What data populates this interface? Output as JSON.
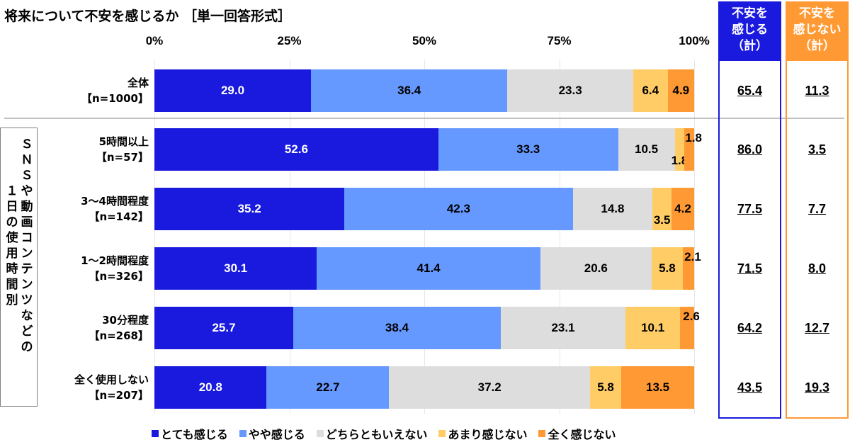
{
  "title": "将来について不安を感じるか ［単一回答形式］",
  "chart_data": {
    "type": "bar",
    "orientation": "horizontal-stacked-100",
    "title": "将来について不安を感じるか ［単一回答形式］",
    "x_ticks": [
      "0%",
      "25%",
      "50%",
      "75%",
      "100%"
    ],
    "xlim": [
      0,
      100
    ],
    "grid": true,
    "legend_position": "bottom",
    "series": [
      {
        "name": "とても感じる",
        "color": "#1a1adf",
        "label_color": "#ffffff"
      },
      {
        "name": "やや感じる",
        "color": "#6699ff",
        "label_color": "#000000"
      },
      {
        "name": "どちらともいえない",
        "color": "#dddddd",
        "label_color": "#000000"
      },
      {
        "name": "あまり感じない",
        "color": "#ffcc66",
        "label_color": "#000000"
      },
      {
        "name": "全く感じない",
        "color": "#ff9933",
        "label_color": "#000000"
      }
    ],
    "rows": [
      {
        "label": "全体",
        "n": "【n=1000】",
        "values": [
          29.0,
          36.4,
          23.3,
          6.4,
          4.9
        ],
        "labels": [
          "29.0",
          "36.4",
          "23.3",
          "6.4",
          "4.9"
        ],
        "anxious_total": "65.4",
        "not_anxious_total": "11.3"
      },
      {
        "label": "5時間以上",
        "n": "【n=57】",
        "values": [
          52.6,
          33.3,
          10.5,
          1.8,
          1.8
        ],
        "labels": [
          "52.6",
          "33.3",
          "10.5",
          "1.8",
          "1.8"
        ],
        "anxious_total": "86.0",
        "not_anxious_total": "3.5"
      },
      {
        "label": "3～4時間程度",
        "n": "【n=142】",
        "values": [
          35.2,
          42.3,
          14.8,
          3.5,
          4.2
        ],
        "labels": [
          "35.2",
          "42.3",
          "14.8",
          "3.5",
          "4.2"
        ],
        "anxious_total": "77.5",
        "not_anxious_total": "7.7"
      },
      {
        "label": "1～2時間程度",
        "n": "【n=326】",
        "values": [
          30.1,
          41.4,
          20.6,
          5.8,
          2.1
        ],
        "labels": [
          "30.1",
          "41.4",
          "20.6",
          "5.8",
          "2.1"
        ],
        "anxious_total": "71.5",
        "not_anxious_total": "8.0"
      },
      {
        "label": "30分程度",
        "n": "【n=268】",
        "values": [
          25.7,
          38.4,
          23.1,
          10.1,
          2.6
        ],
        "labels": [
          "25.7",
          "38.4",
          "23.1",
          "10.1",
          "2.6"
        ],
        "anxious_total": "64.2",
        "not_anxious_total": "12.7"
      },
      {
        "label": "全く使用しない",
        "n": "【n=207】",
        "values": [
          20.8,
          22.7,
          37.2,
          5.8,
          13.5
        ],
        "labels": [
          "20.8",
          "22.7",
          "37.2",
          "5.8",
          "13.5"
        ],
        "anxious_total": "43.5",
        "not_anxious_total": "19.3"
      }
    ]
  },
  "group_label": {
    "col1": "ＳＮＳや動画コンテンツなどの",
    "col2": "１日の使用時間別"
  },
  "summary": {
    "anxious": {
      "header": [
        "不安を",
        "感じる",
        "（計）"
      ],
      "color": "#1a1adf"
    },
    "not_anxious": {
      "header": [
        "不安を",
        "感じない",
        "（計）"
      ],
      "color": "#ff9933"
    }
  }
}
